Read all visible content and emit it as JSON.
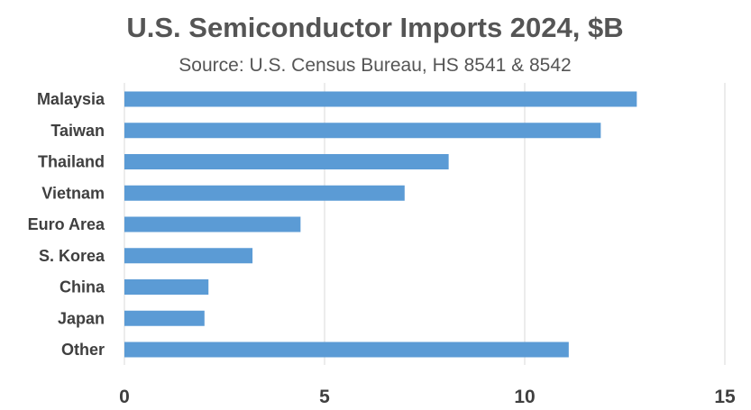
{
  "chart_data": {
    "type": "bar",
    "orientation": "horizontal",
    "title": "U.S. Semiconductor Imports 2024, $B",
    "subtitle": "Source: U.S. Census Bureau, HS 8541 & 8542",
    "categories": [
      "Malaysia",
      "Taiwan",
      "Thailand",
      "Vietnam",
      "Euro Area",
      "S. Korea",
      "China",
      "Japan",
      "Other"
    ],
    "values": [
      12.8,
      11.9,
      8.1,
      7.0,
      4.4,
      3.2,
      2.1,
      2.0,
      11.1
    ],
    "xlabel": "",
    "ylabel": "",
    "xlim": [
      0,
      15
    ],
    "ticks": [
      "0",
      "5",
      "10",
      "15"
    ],
    "tick_values": [
      0,
      5,
      10,
      15
    ],
    "grid": "vertical",
    "legend": "none",
    "bar_color": "#5b9bd5",
    "grid_color": "#d9d9d9",
    "text_color": "#3f3f3f"
  }
}
